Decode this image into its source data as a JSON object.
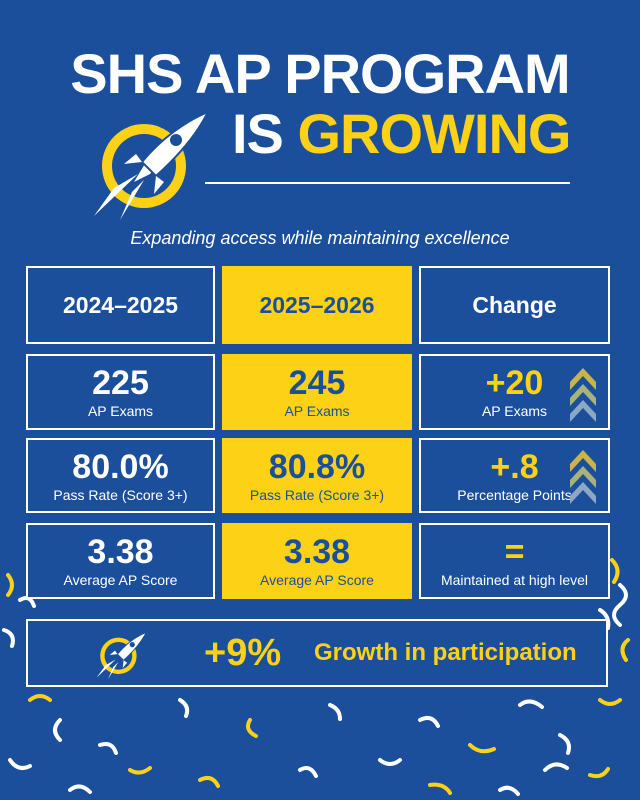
{
  "title": {
    "line1": "SHS AP PROGRAM",
    "line2_prefix": "IS",
    "line2_highlight": "GROWING"
  },
  "subtitle": "Expanding access while maintaining excellence",
  "table": {
    "headers": [
      "2024–2025",
      "2025–2026",
      "Change"
    ],
    "rows": [
      {
        "prev_value": "225",
        "prev_label": "AP Exams",
        "curr_value": "245",
        "curr_label": "AP Exams",
        "change_value": "+20",
        "change_label": "AP Exams"
      },
      {
        "prev_value": "80.0%",
        "prev_label": "Pass Rate (Score 3+)",
        "curr_value": "80.8%",
        "curr_label": "Pass Rate (Score 3+)",
        "change_value": "+.8",
        "change_label": "Percentage Points"
      },
      {
        "prev_value": "3.38",
        "prev_label": "Average AP Score",
        "curr_value": "3.38",
        "curr_label": "Average AP Score",
        "change_value": "=",
        "change_label": "Maintained at high level"
      }
    ]
  },
  "growth": {
    "value": "+9%",
    "label": "Growth in participation"
  },
  "colors": {
    "background": "#1b4f9c",
    "accent": "#fcd116",
    "text": "#ffffff"
  },
  "icons": [
    "rocket-logo-icon",
    "chevron-up-icon"
  ]
}
